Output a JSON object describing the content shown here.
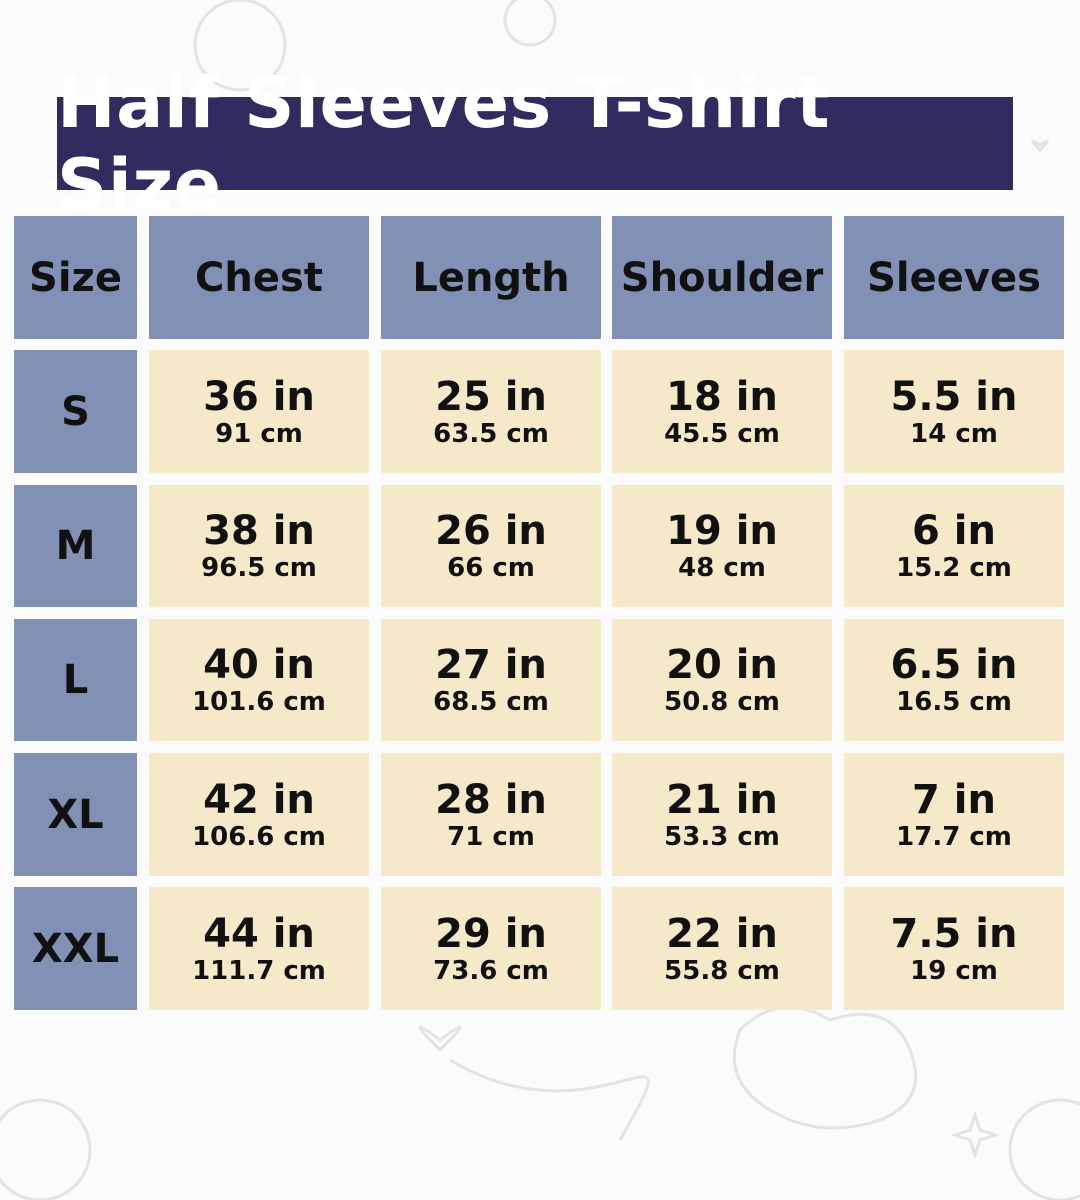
{
  "title": "Half Sleeves T-shirt Size",
  "colors": {
    "title_bg": "#302c5f",
    "header_bg": "#8190b5",
    "cell_bg": "#f5e9c9"
  },
  "headers": [
    "Size",
    "Chest",
    "Length",
    "Shoulder",
    "Sleeves"
  ],
  "rows": [
    {
      "size": "S",
      "values": [
        {
          "in": "36 in",
          "cm": "91 cm"
        },
        {
          "in": "25 in",
          "cm": "63.5 cm"
        },
        {
          "in": "18 in",
          "cm": "45.5 cm"
        },
        {
          "in": "5.5 in",
          "cm": "14 cm"
        }
      ]
    },
    {
      "size": "M",
      "values": [
        {
          "in": "38 in",
          "cm": "96.5 cm"
        },
        {
          "in": "26 in",
          "cm": "66 cm"
        },
        {
          "in": "19 in",
          "cm": "48 cm"
        },
        {
          "in": "6 in",
          "cm": "15.2 cm"
        }
      ]
    },
    {
      "size": "L",
      "values": [
        {
          "in": "40 in",
          "cm": "101.6 cm"
        },
        {
          "in": "27 in",
          "cm": "68.5 cm"
        },
        {
          "in": "20 in",
          "cm": "50.8 cm"
        },
        {
          "in": "6.5 in",
          "cm": "16.5 cm"
        }
      ]
    },
    {
      "size": "XL",
      "values": [
        {
          "in": "42 in",
          "cm": "106.6 cm"
        },
        {
          "in": "28 in",
          "cm": "71 cm"
        },
        {
          "in": "21 in",
          "cm": "53.3 cm"
        },
        {
          "in": "7 in",
          "cm": "17.7 cm"
        }
      ]
    },
    {
      "size": "XXL",
      "values": [
        {
          "in": "44 in",
          "cm": "111.7 cm"
        },
        {
          "in": "29 in",
          "cm": "73.6 cm"
        },
        {
          "in": "22 in",
          "cm": "55.8 cm"
        },
        {
          "in": "7.5 in",
          "cm": "19 cm"
        }
      ]
    }
  ]
}
